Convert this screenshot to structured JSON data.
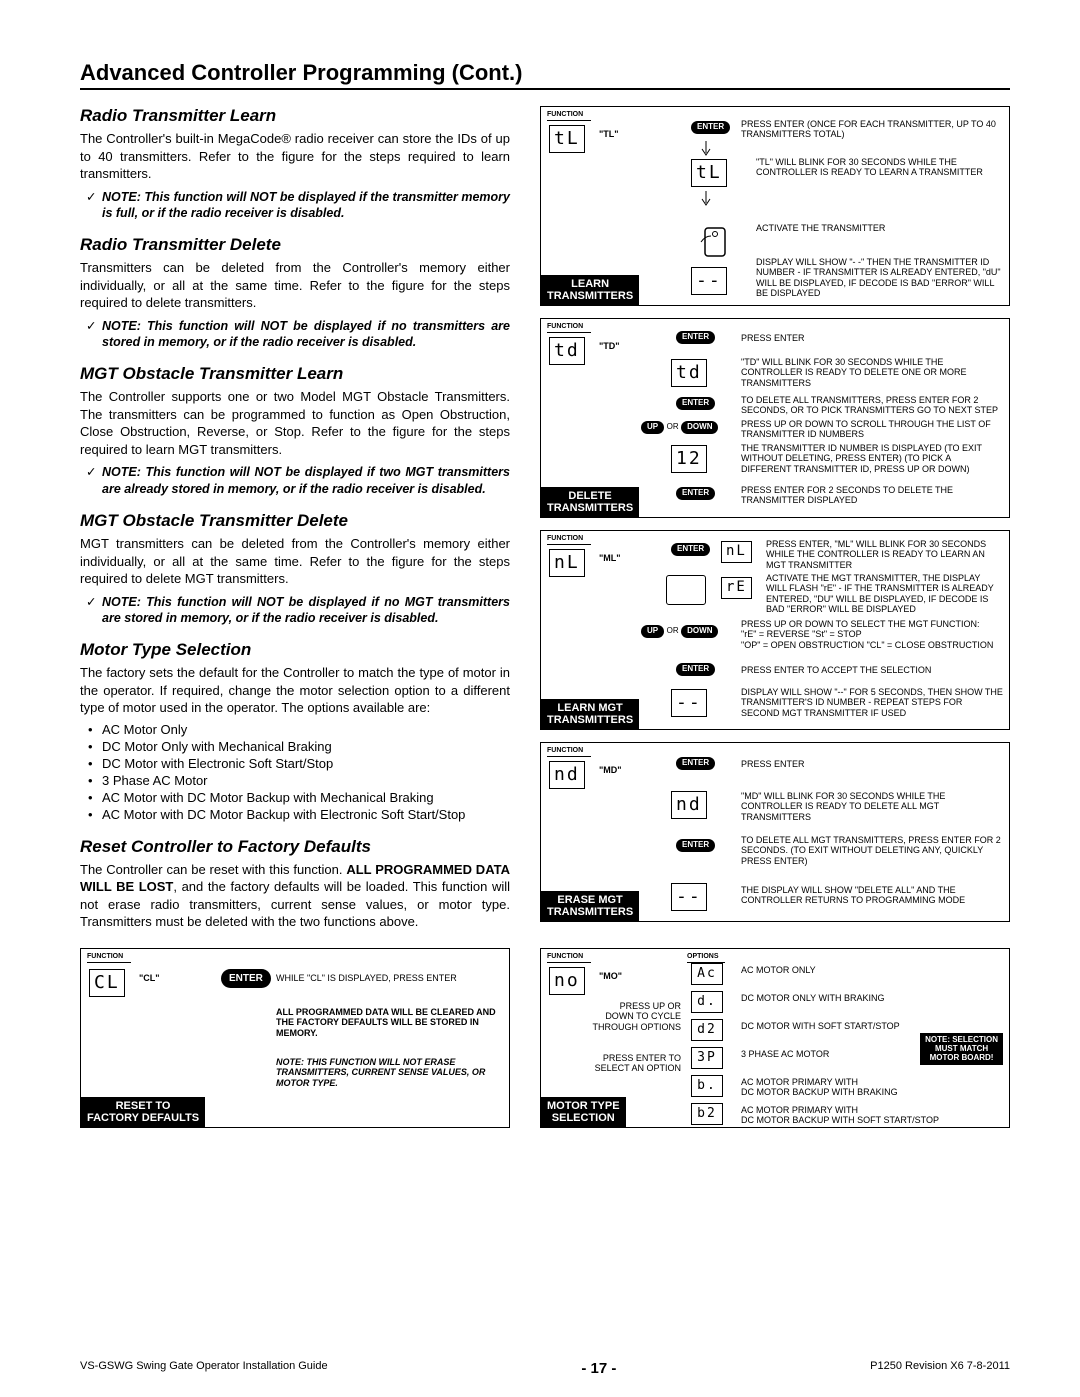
{
  "page_title": "Advanced Controller Programming (Cont.)",
  "sections": {
    "rtl": {
      "head": "Radio Transmitter Learn",
      "body": "The Controller's built-in MegaCode® radio receiver can store the IDs of up to 40 transmitters. Refer to the figure for the steps required to learn transmitters.",
      "note": "NOTE: This function will NOT be displayed if the transmitter memory is full, or if the radio receiver is disabled."
    },
    "rtd": {
      "head": "Radio Transmitter Delete",
      "body": "Transmitters can be deleted from the Controller's memory either individually, or all at the same time. Refer to the figure for the steps required to delete transmitters.",
      "note": "NOTE: This function will NOT be displayed if no transmitters are stored in memory, or if the radio receiver is disabled."
    },
    "motl": {
      "head": "MGT Obstacle Transmitter Learn",
      "body": "The Controller supports one or two Model MGT Obstacle Transmitters. The transmitters can be programmed to function as Open Obstruction, Close Obstruction, Reverse, or Stop. Refer to the figure for the steps required to learn MGT transmitters.",
      "note": "NOTE: This function will NOT be displayed if two MGT transmitters are already stored in memory, or if the radio receiver is disabled."
    },
    "motd": {
      "head": "MGT Obstacle Transmitter Delete",
      "body": "MGT transmitters can be deleted from the Controller's memory either individually, or all at the same time. Refer to the figure for the steps required to delete MGT transmitters.",
      "note": "NOTE: This function will NOT be displayed if no MGT transmitters are stored in memory, or if the radio receiver is disabled."
    },
    "mts": {
      "head": "Motor Type Selection",
      "body": "The factory sets the default for the Controller to match the type of motor in the operator. If required, change the motor selection option to a different type of motor used in the operator. The options available are:",
      "bullets": [
        "AC Motor Only",
        "DC Motor Only with Mechanical Braking",
        "DC Motor with Electronic Soft Start/Stop",
        "3 Phase AC Motor",
        "AC Motor with DC Motor Backup with Mechanical Braking",
        "AC Motor with DC Motor Backup with Electronic Soft Start/Stop"
      ]
    },
    "reset": {
      "head": "Reset Controller to Factory Defaults",
      "body1": "The Controller can be reset with this function. ",
      "bold": "ALL PROGRAMMED DATA WILL BE LOST",
      "body2": ", and the factory defaults will be loaded. This function will not erase radio transmitters, current sense values, or motor type. Transmitters must be deleted with the two functions above."
    }
  },
  "diag": {
    "function_label": "FUNCTION",
    "options_label": "OPTIONS",
    "enter": "ENTER",
    "up": "UP",
    "down": "DOWN",
    "or": "OR",
    "learn": {
      "tab": "LEARN\nTRANSMITTERS",
      "code": "\"TL\"",
      "seg1": "tL",
      "t1": "PRESS ENTER (ONCE FOR EACH TRANSMITTER, UP TO 40 TRANSMITTERS TOTAL)",
      "t2": "\"TL\" WILL BLINK FOR 30 SECONDS WHILE THE CONTROLLER IS READY TO LEARN A TRANSMITTER",
      "t3": "ACTIVATE THE TRANSMITTER",
      "t4": "DISPLAY WILL SHOW \"- -\" THEN THE TRANSMITTER ID NUMBER - IF TRANSMITTER IS ALREADY ENTERED, \"dU\" WILL BE DISPLAYED, IF DECODE IS BAD \"ERROR\" WILL BE DISPLAYED",
      "seg_dash": "--"
    },
    "delete": {
      "tab": "DELETE\nTRANSMITTERS",
      "code": "\"TD\"",
      "seg1": "td",
      "t1": "PRESS ENTER",
      "t2": "\"TD\" WILL BLINK FOR 30 SECONDS WHILE THE CONTROLLER IS READY TO DELETE ONE OR MORE TRANSMITTERS",
      "t3": "TO DELETE ALL TRANSMITTERS, PRESS ENTER FOR 2 SECONDS, OR TO PICK TRANSMITTERS GO TO NEXT STEP",
      "t4": "PRESS UP OR DOWN TO SCROLL THROUGH THE LIST OF TRANSMITTER ID NUMBERS",
      "t5": "THE TRANSMITTER ID NUMBER IS DISPLAYED (TO EXIT WITHOUT DELETING, PRESS ENTER) (TO PICK A DIFFERENT TRANSMITTER ID, PRESS UP OR DOWN)",
      "t6": "PRESS ENTER FOR 2 SECONDS TO DELETE THE TRANSMITTER DISPLAYED",
      "seg_id": "12"
    },
    "mgtlearn": {
      "tab": "LEARN MGT\nTRANSMITTERS",
      "code": "\"ML\"",
      "seg1": "nL",
      "t1": "PRESS ENTER, \"ML\" WILL BLINK FOR 30 SECONDS WHILE THE CONTROLLER IS READY TO LEARN AN MGT TRANSMITTER",
      "t2": "ACTIVATE THE MGT TRANSMITTER, THE DISPLAY WILL FLASH \"rE\" - IF THE TRANSMITTER IS ALREADY ENTERED, \"DU\" WILL BE DISPLAYED, IF DECODE IS BAD \"ERROR\" WILL BE DISPLAYED",
      "t3a": "PRESS UP OR DOWN TO SELECT THE MGT FUNCTION:",
      "t3b": "\"rE\" = REVERSE    \"St\" = STOP",
      "t3c": "\"OP\" = OPEN OBSTRUCTION    \"CL\" = CLOSE OBSTRUCTION",
      "t4": "PRESS ENTER TO ACCEPT THE SELECTION",
      "t5": "DISPLAY WILL SHOW \"--\" FOR 5 SECONDS, THEN SHOW THE TRANSMITTER'S ID NUMBER - REPEAT STEPS FOR SECOND MGT TRANSMITTER IF USED",
      "seg_re": "rE",
      "seg_dash": "--"
    },
    "mgterase": {
      "tab": "ERASE MGT\nTRANSMITTERS",
      "code": "\"MD\"",
      "seg1": "nd",
      "t1": "PRESS ENTER",
      "t2": "\"MD\" WILL BLINK FOR 30 SECONDS WHILE THE CONTROLLER IS READY TO DELETE ALL MGT TRANSMITTERS",
      "t3": "TO DELETE ALL MGT TRANSMITTERS, PRESS ENTER FOR 2 SECONDS. (TO EXIT WITHOUT DELETING ANY, QUICKLY PRESS ENTER)",
      "t4": "THE DISPLAY WILL SHOW \"DELETE ALL\" AND THE CONTROLLER RETURNS TO PROGRAMMING MODE",
      "seg_dash": "--"
    },
    "resetpanel": {
      "tab": "RESET TO\nFACTORY DEFAULTS",
      "code": "\"CL\"",
      "seg1": "CL",
      "t1": "WHILE \"CL\" IS DISPLAYED, PRESS ENTER",
      "t2": "ALL PROGRAMMED DATA WILL BE CLEARED AND THE FACTORY DEFAULTS WILL BE STORED IN MEMORY.",
      "t3": "NOTE: THIS FUNCTION WILL NOT ERASE TRANSMITTERS, CURRENT SENSE VALUES, OR MOTOR TYPE."
    },
    "motorpanel": {
      "tab": "MOTOR TYPE\nSELECTION",
      "code": "\"MO\"",
      "seg1": "no",
      "t1": "PRESS UP OR DOWN TO CYCLE THROUGH OPTIONS",
      "t2": "PRESS ENTER TO SELECT AN OPTION",
      "opts": [
        {
          "seg": "Ac",
          "label": "AC MOTOR ONLY"
        },
        {
          "seg": "d.",
          "label": "DC MOTOR ONLY WITH BRAKING"
        },
        {
          "seg": "d2",
          "label": "DC MOTOR WITH SOFT START/STOP"
        },
        {
          "seg": "3P",
          "label": "3 PHASE AC MOTOR"
        },
        {
          "seg": "b.",
          "label": "AC MOTOR PRIMARY WITH\nDC MOTOR BACKUP WITH BRAKING"
        },
        {
          "seg": "b2",
          "label": "AC MOTOR PRIMARY WITH\nDC MOTOR BACKUP WITH SOFT START/STOP"
        }
      ],
      "notebox": "NOTE: SELECTION\nMUST MATCH\nMOTOR BOARD!"
    }
  },
  "footer": {
    "left": "VS-GSWG    Swing Gate Operator Installation Guide",
    "mid": "- 17 -",
    "right": "P1250 Revision X6 7-8-2011"
  }
}
